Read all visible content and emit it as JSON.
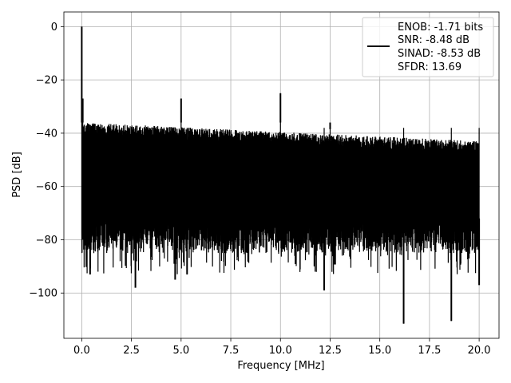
{
  "chart_data": {
    "type": "line",
    "xlabel": "Frequency [MHz]",
    "ylabel": "PSD [dB]",
    "xlim": [
      -0.9,
      21.0
    ],
    "ylim": [
      -117,
      5.5
    ],
    "xticks": [
      0.0,
      2.5,
      5.0,
      7.5,
      10.0,
      12.5,
      15.0,
      17.5,
      20.0
    ],
    "xtick_labels": [
      "0.0",
      "2.5",
      "5.0",
      "7.5",
      "10.0",
      "12.5",
      "15.0",
      "17.5",
      "20.0"
    ],
    "yticks": [
      0,
      -20,
      -40,
      -60,
      -80,
      -100
    ],
    "ytick_labels": [
      "0",
      "−20",
      "−40",
      "−60",
      "−80",
      "−100"
    ],
    "grid": true,
    "legend_position": "top-right",
    "legend_entries": [
      "ENOB: -1.71 bits",
      "SNR: -8.48 dB",
      "SINAD: -8.53 dB",
      "SFDR: 13.69"
    ],
    "series": [
      {
        "color": "#000000",
        "x_range": [
          0.0,
          20.0
        ],
        "noise_band_upper_left": -36,
        "noise_band_upper_right": -43,
        "noise_band_lower": -72,
        "noise_floor_deep": -85,
        "peaks": [
          {
            "x": 0.0,
            "y": 0.0
          },
          {
            "x": 0.05,
            "y": -27.0
          },
          {
            "x": 5.0,
            "y": -27.0
          },
          {
            "x": 10.0,
            "y": -25.0
          },
          {
            "x": 12.5,
            "y": -38.5
          }
        ],
        "dips": [
          {
            "x": 0.1,
            "y": -79.0
          },
          {
            "x": 0.42,
            "y": -93.0
          },
          {
            "x": 2.7,
            "y": -98.0
          },
          {
            "x": 4.7,
            "y": -95.0
          },
          {
            "x": 5.3,
            "y": -93.0
          },
          {
            "x": 12.2,
            "y": -99.0
          },
          {
            "x": 16.2,
            "y": -111.5
          },
          {
            "x": 18.6,
            "y": -110.5
          },
          {
            "x": 20.0,
            "y": -97.0
          }
        ]
      }
    ]
  }
}
